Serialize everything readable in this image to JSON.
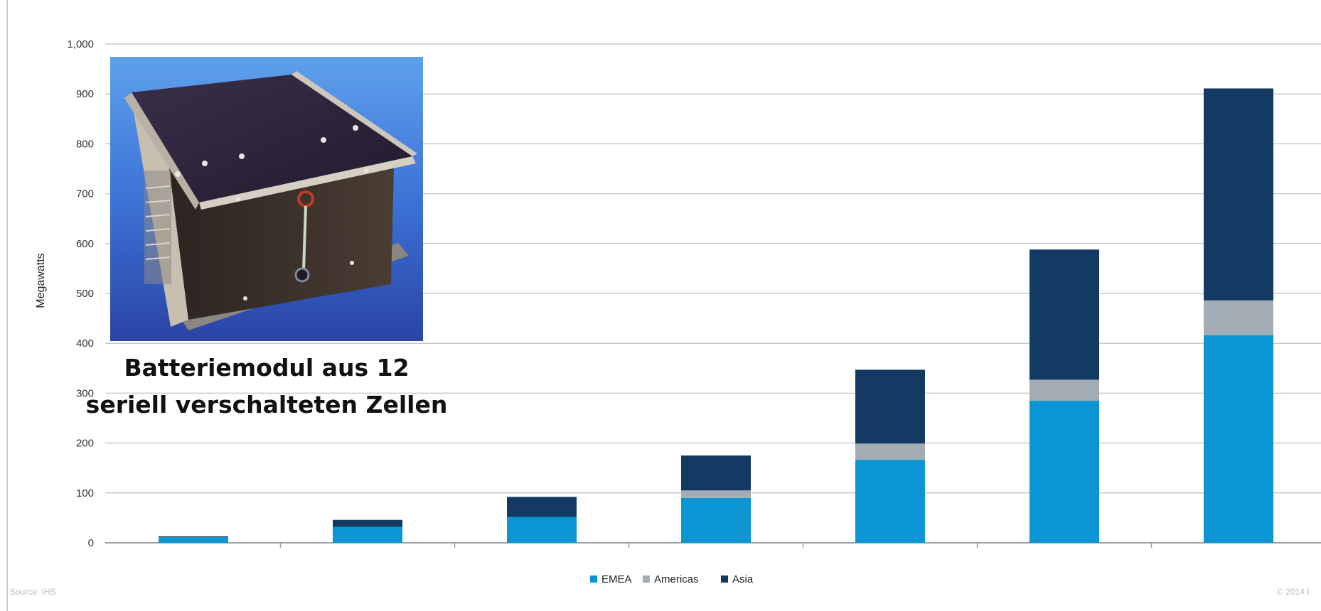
{
  "chart_data": {
    "type": "bar",
    "stacked": true,
    "categories": [
      "",
      "",
      "",
      "",
      "",
      "",
      "",
      ""
    ],
    "series": [
      {
        "name": "EMEA",
        "color": "#0b96d3",
        "values": [
          11,
          32,
          52,
          90,
          166,
          285,
          416,
          0
        ]
      },
      {
        "name": "Americas",
        "color": "#a4acb3",
        "values": [
          0,
          0,
          0,
          15,
          33,
          42,
          70,
          0
        ]
      },
      {
        "name": "Asia",
        "color": "#143a63",
        "values": [
          2,
          14,
          40,
          70,
          148,
          261,
          425,
          0
        ]
      }
    ],
    "ylabel": "Megawatts",
    "ylim": [
      0,
      1000
    ],
    "yticks": [
      "0",
      "100",
      "200",
      "300",
      "400",
      "500",
      "600",
      "700",
      "800",
      "900",
      "1,000"
    ],
    "grid": true,
    "legend_position": "bottom"
  },
  "overlay": {
    "caption_line1": "Batteriemodul aus 12",
    "caption_line2": "seriell verschalteten Zellen"
  },
  "footer": {
    "source": "Source: IHS",
    "copyright": "© 2014 I"
  }
}
